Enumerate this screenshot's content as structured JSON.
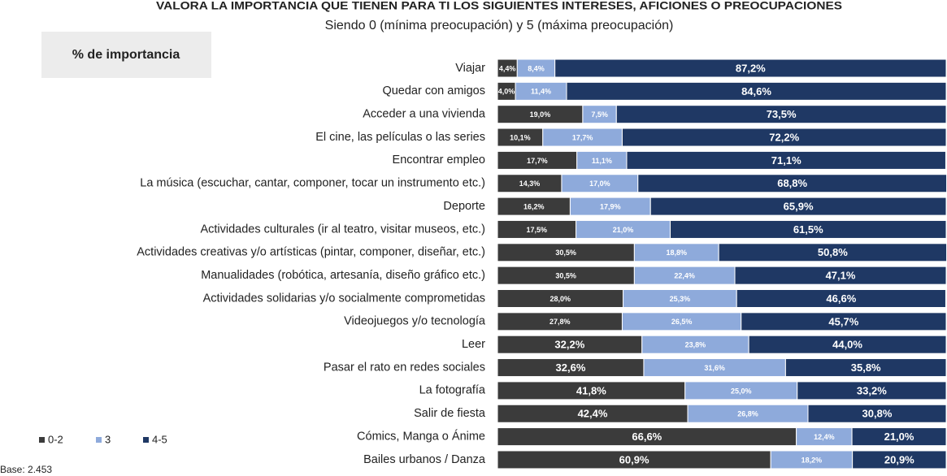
{
  "chart_data": {
    "type": "stacked_bar_horizontal",
    "title": "VALORA LA IMPORTANCIA QUE TIENEN PARA TI LOS SIGUIENTES INTERESES, AFICIONES O PREOCUPACIONES",
    "subtitle": "Siendo 0 (mínima preocupación) y 5 (máxima preocupación)",
    "panel_label": "% de importancia",
    "base_note": "Base: 2.453",
    "xlim": [
      0,
      100
    ],
    "categories": [
      "Viajar",
      "Quedar con amigos",
      "Acceder a una vivienda",
      "El cine, las películas o las series",
      "Encontrar empleo",
      "La música (escuchar, cantar, componer, tocar un instrumento etc.)",
      "Deporte",
      "Actividades culturales (ir al teatro, visitar museos, etc.)",
      "Actividades creativas y/o artísticas (pintar, componer, diseñar, etc.)",
      "Manualidades (robótica, artesanía, diseño gráfico etc.)",
      "Actividades solidarias y/o socialmente comprometidas",
      "Videojuegos y/o tecnología",
      "Leer",
      "Pasar el rato en redes sociales",
      "La fotografía",
      "Salir de fiesta",
      "Cómics, Manga o Ánime",
      "Bailes urbanos / Danza"
    ],
    "series": [
      {
        "name": "0-2",
        "color": "#3b3b3b",
        "values": [
          4.4,
          4.0,
          19.0,
          10.1,
          17.7,
          14.3,
          16.2,
          17.5,
          30.5,
          30.5,
          28.0,
          27.8,
          32.2,
          32.6,
          41.8,
          42.4,
          66.6,
          60.9
        ],
        "value_labels": [
          "4,4%",
          "4,0%",
          "19,0%",
          "10,1%",
          "17,7%",
          "14,3%",
          "16,2%",
          "17,5%",
          "30,5%",
          "30,5%",
          "28,0%",
          "27,8%",
          "32,2%",
          "32,6%",
          "41,8%",
          "42,4%",
          "66,6%",
          "60,9%"
        ]
      },
      {
        "name": "3",
        "color": "#8eaadb",
        "values": [
          8.4,
          11.4,
          7.5,
          17.7,
          11.1,
          17.0,
          17.9,
          21.0,
          18.8,
          22.4,
          25.3,
          26.5,
          23.8,
          31.6,
          25.0,
          26.8,
          12.4,
          18.2
        ],
        "value_labels": [
          "8,4%",
          "11,4%",
          "7,5%",
          "17,7%",
          "11,1%",
          "17,0%",
          "17,9%",
          "21,0%",
          "18,8%",
          "22,4%",
          "25,3%",
          "26,5%",
          "23,8%",
          "31,6%",
          "25,0%",
          "26,8%",
          "12,4%",
          "18,2%"
        ]
      },
      {
        "name": "4-5",
        "color": "#1f3864",
        "values": [
          87.2,
          84.6,
          73.5,
          72.2,
          71.1,
          68.8,
          65.9,
          61.5,
          50.8,
          47.1,
          46.6,
          45.7,
          44.0,
          35.8,
          33.2,
          30.8,
          21.0,
          20.9
        ],
        "value_labels": [
          "87,2%",
          "84,6%",
          "73,5%",
          "72,2%",
          "71,1%",
          "68,8%",
          "65,9%",
          "61,5%",
          "50,8%",
          "47,1%",
          "46,6%",
          "45,7%",
          "44,0%",
          "35,8%",
          "33,2%",
          "30,8%",
          "21,0%",
          "20,9%"
        ]
      }
    ]
  }
}
